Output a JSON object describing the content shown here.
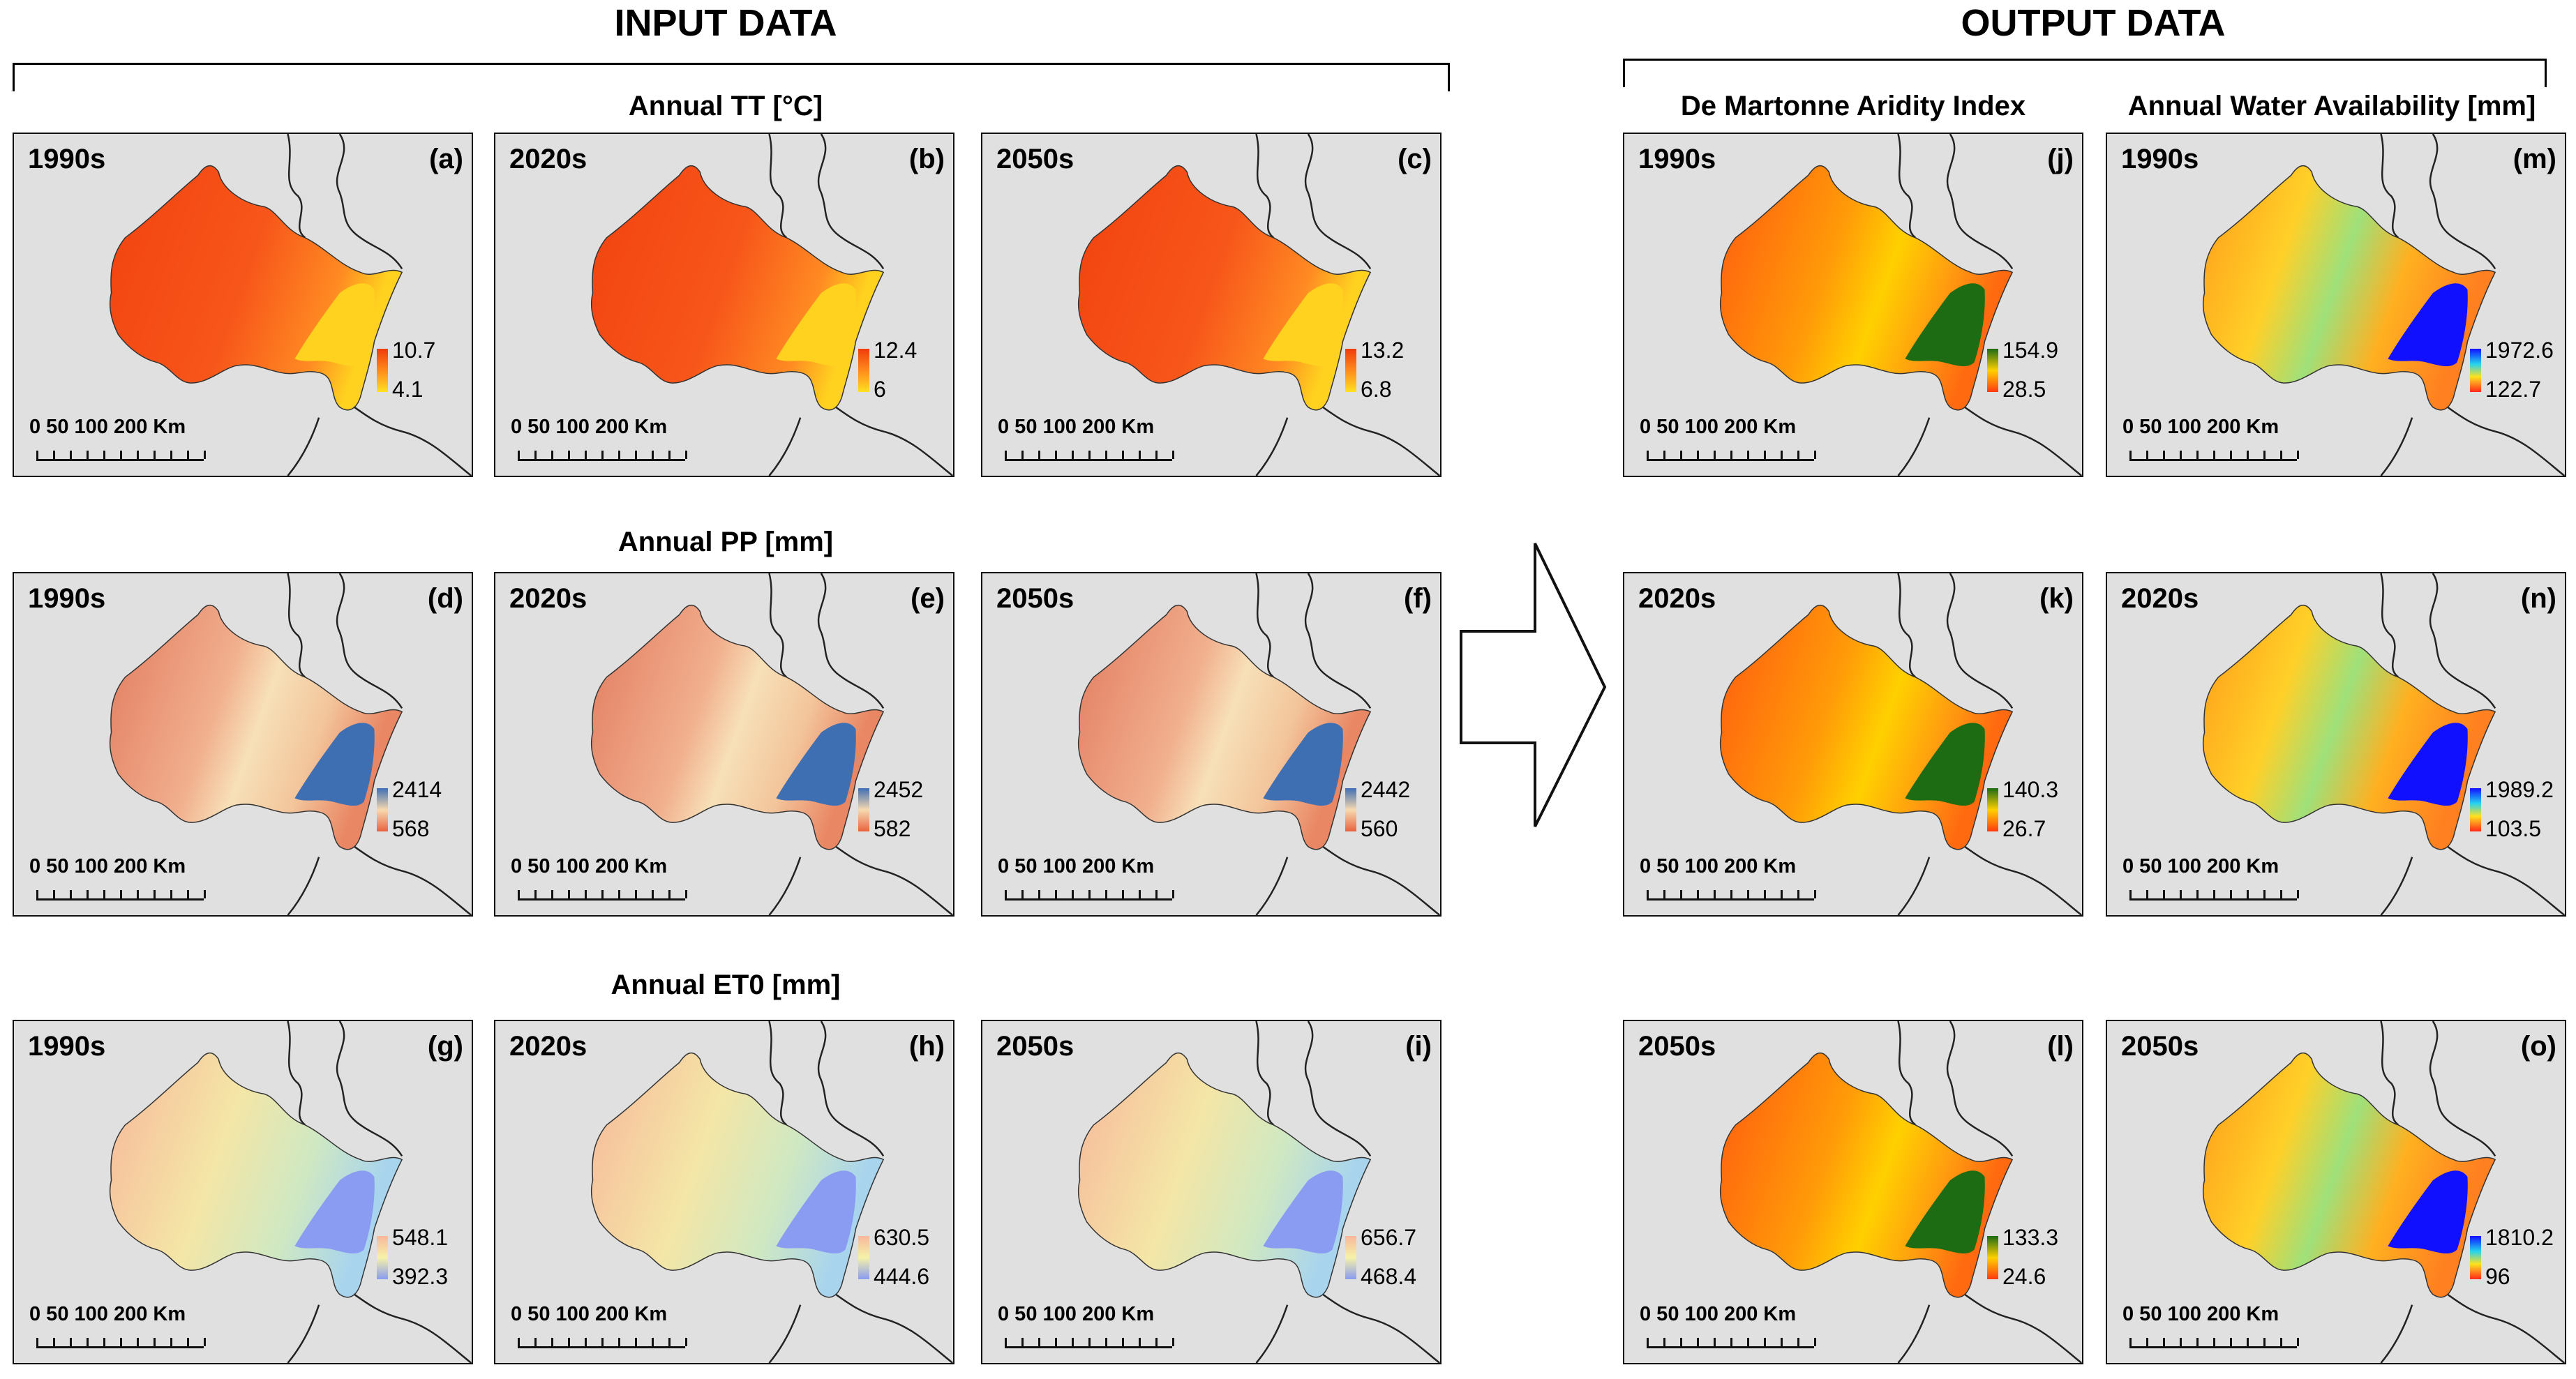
{
  "headings": {
    "input": "INPUT DATA",
    "output": "OUTPUT DATA"
  },
  "row_titles": {
    "tt": "Annual TT [°C]",
    "pp": "Annual PP [mm]",
    "et0": "Annual ET0 [mm]",
    "aridity": "De Martonne Aridity Index",
    "water": "Annual Water Availability [mm]"
  },
  "scale_text": "0   50 100       200 Km",
  "panels": {
    "a": {
      "decade": "1990s",
      "label": "(a)",
      "max": "10.7",
      "min": "4.1"
    },
    "b": {
      "decade": "2020s",
      "label": "(b)",
      "max": "12.4",
      "min": "6"
    },
    "c": {
      "decade": "2050s",
      "label": "(c)",
      "max": "13.2",
      "min": "6.8"
    },
    "d": {
      "decade": "1990s",
      "label": "(d)",
      "max": "2414",
      "min": "568"
    },
    "e": {
      "decade": "2020s",
      "label": "(e)",
      "max": "2452",
      "min": "582"
    },
    "f": {
      "decade": "2050s",
      "label": "(f)",
      "max": "2442",
      "min": "560"
    },
    "g": {
      "decade": "1990s",
      "label": "(g)",
      "max": "548.1",
      "min": "392.3"
    },
    "h": {
      "decade": "2020s",
      "label": "(h)",
      "max": "630.5",
      "min": "444.6"
    },
    "i": {
      "decade": "2050s",
      "label": "(i)",
      "max": "656.7",
      "min": "468.4"
    },
    "j": {
      "decade": "1990s",
      "label": "(j)",
      "max": "154.9",
      "min": "28.5"
    },
    "k": {
      "decade": "2020s",
      "label": "(k)",
      "max": "140.3",
      "min": "26.7"
    },
    "l": {
      "decade": "2050s",
      "label": "(l)",
      "max": "133.3",
      "min": "24.6"
    },
    "m": {
      "decade": "1990s",
      "label": "(m)",
      "max": "1972.6",
      "min": "122.7"
    },
    "n": {
      "decade": "2020s",
      "label": "(n)",
      "max": "1989.2",
      "min": "103.5"
    },
    "o": {
      "decade": "2050s",
      "label": "(o)",
      "max": "1810.2",
      "min": "96"
    }
  },
  "colors": {
    "tt_ramp": [
      "#f03c0c",
      "#ff7a1a",
      "#ffe020"
    ],
    "pp_ramp": [
      "#e87a5a",
      "#f7d9b0",
      "#3f6fb3"
    ],
    "et0_ramp": [
      "#f7b79a",
      "#f6f2a8",
      "#8a9bf2"
    ],
    "aridity_ramp": [
      "#ff4a10",
      "#ffb800",
      "#1d6b12"
    ],
    "water_ramp": [
      "#ff2a1a",
      "#ffe020",
      "#23d3f0",
      "#1010ff"
    ],
    "background": "#e0e0e0"
  }
}
